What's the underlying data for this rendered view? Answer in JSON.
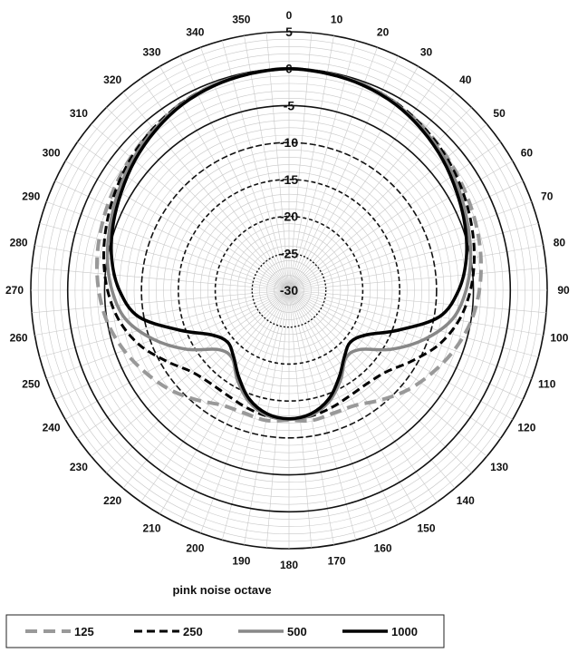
{
  "chart_data": {
    "type": "polar-line",
    "title": "",
    "xlabel": "pink noise octave",
    "angle_unit": "degrees",
    "angle_direction": "clockwise",
    "angle_zero": "top",
    "angle_ticks": [
      "0",
      "10",
      "20",
      "30",
      "40",
      "50",
      "60",
      "70",
      "80",
      "90",
      "100",
      "110",
      "120",
      "130",
      "140",
      "150",
      "160",
      "170",
      "180",
      "190",
      "200",
      "210",
      "220",
      "230",
      "240",
      "250",
      "260",
      "270",
      "280",
      "290",
      "300",
      "310",
      "320",
      "330",
      "340",
      "350"
    ],
    "r_ticks": [
      "-30",
      "-25",
      "-20",
      "-15",
      "-10",
      "-5",
      "0",
      "5"
    ],
    "r_range": [
      -30,
      5
    ],
    "angles": [
      0,
      10,
      20,
      30,
      40,
      50,
      60,
      70,
      80,
      90,
      100,
      110,
      120,
      130,
      140,
      150,
      160,
      170,
      180,
      190,
      200,
      210,
      220,
      230,
      240,
      250,
      260,
      270,
      280,
      290,
      300,
      310,
      320,
      330,
      340,
      350
    ],
    "series": [
      {
        "name": "125",
        "color": "#999999",
        "dash": "long-dash",
        "values": [
          0,
          -0.2,
          -0.4,
          -0.8,
          -1.4,
          -2,
          -2.6,
          -3.1,
          -3.6,
          -4.2,
          -5,
          -6.2,
          -7.6,
          -9,
          -10.6,
          -12,
          -12.3,
          -12.1,
          -12.4,
          -12.1,
          -12.3,
          -12,
          -10.6,
          -9,
          -7.6,
          -6.2,
          -5,
          -4.2,
          -3.6,
          -3.1,
          -2.6,
          -2,
          -1.4,
          -0.8,
          -0.4,
          -0.2
        ]
      },
      {
        "name": "250",
        "color": "#000000",
        "dash": "dash",
        "values": [
          0,
          -0.2,
          -0.4,
          -0.8,
          -1.4,
          -2.1,
          -2.9,
          -3.7,
          -4.5,
          -5.4,
          -6.6,
          -8.4,
          -10.8,
          -12.8,
          -13.5,
          -13.5,
          -13.1,
          -12.7,
          -12.5,
          -12.7,
          -13.1,
          -13.5,
          -13.5,
          -12.8,
          -10.8,
          -8.4,
          -6.6,
          -5.4,
          -4.5,
          -3.7,
          -2.9,
          -2.1,
          -1.4,
          -0.8,
          -0.4,
          -0.2
        ]
      },
      {
        "name": "500",
        "color": "#888888",
        "dash": "solid",
        "values": [
          0,
          -0.2,
          -0.4,
          -0.9,
          -1.6,
          -2.4,
          -3.3,
          -4.2,
          -5,
          -6,
          -7.5,
          -10.5,
          -14,
          -17.5,
          -18,
          -16,
          -14,
          -12.8,
          -12.5,
          -12.8,
          -14,
          -16,
          -18,
          -17.5,
          -14,
          -10.5,
          -7.5,
          -6,
          -5,
          -4.2,
          -3.3,
          -2.4,
          -1.6,
          -0.9,
          -0.4,
          -0.2
        ]
      },
      {
        "name": "1000",
        "color": "#000000",
        "dash": "solid",
        "values": [
          0,
          -0.2,
          -0.5,
          -1,
          -1.8,
          -2.7,
          -3.7,
          -4.6,
          -5.6,
          -7,
          -9.3,
          -14.2,
          -17.9,
          -19.1,
          -18.3,
          -16.4,
          -14.3,
          -13,
          -12.6,
          -13,
          -14.3,
          -16.4,
          -18.3,
          -19.1,
          -17.9,
          -14.2,
          -9.3,
          -7,
          -5.6,
          -4.6,
          -3.7,
          -2.7,
          -1.8,
          -1,
          -0.5,
          -0.2
        ]
      }
    ],
    "legend": {
      "position": "bottom",
      "entries": [
        "125",
        "250",
        "500",
        "1000"
      ]
    }
  }
}
